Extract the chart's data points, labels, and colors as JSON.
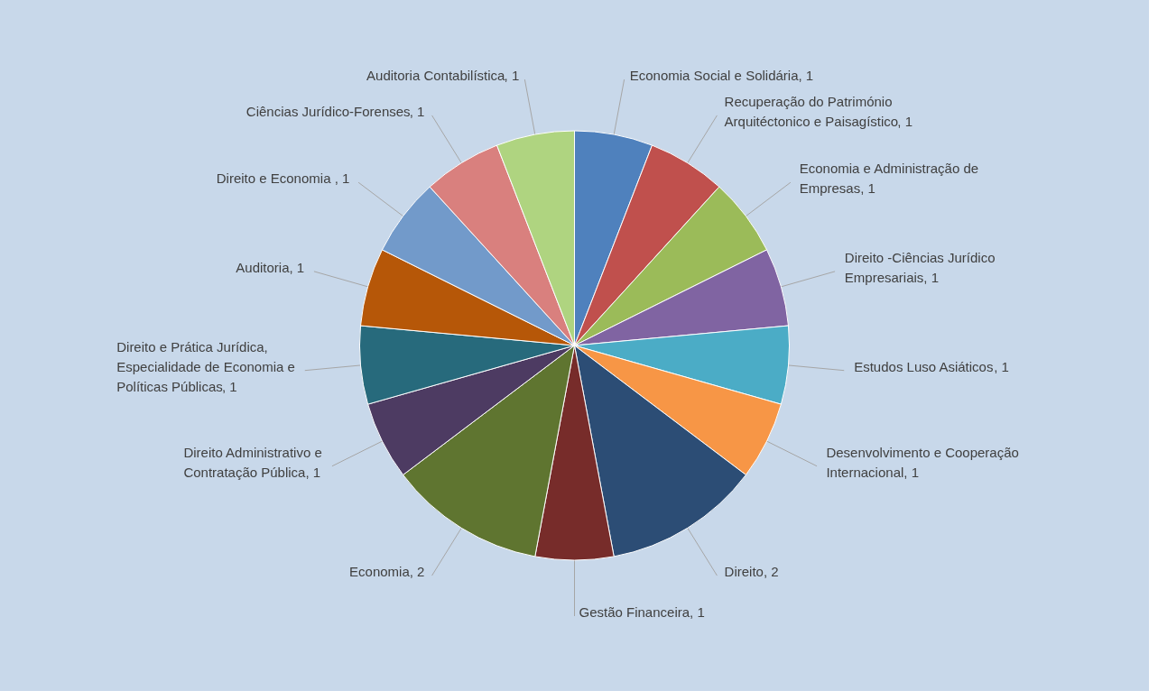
{
  "chart_data": {
    "type": "pie",
    "categories": [
      "Economia Social e Solidária",
      "Recuperação do Património Arquitéctonico e Paisagístico",
      "Economia  e Administração de Empresas",
      "Direito -Ciências Jurídico Empresariais",
      "Estudos Luso Asiáticos",
      "Desenvolvimento e Cooperação Internacional",
      "Direito",
      "Gestão Financeira",
      "Economia",
      "Direito Administrativo e Contratação Pública",
      "Direito e Prática Jurídica, Especialidade de Economia e Políticas Públicas",
      "Auditoria",
      "Direito e  Economia",
      "Ciências Jurídico-Forenses",
      "Auditoria Contabilística"
    ],
    "values": [
      1,
      1,
      1,
      1,
      1,
      1,
      2,
      1,
      2,
      1,
      1,
      1,
      1,
      1,
      1
    ],
    "colors": [
      "#4f81bd",
      "#c0504d",
      "#9bbb59",
      "#8064a2",
      "#4bacc6",
      "#f79646",
      "#2c4d75",
      "#772c2a",
      "#5f7530",
      "#4d3b62",
      "#276a7c",
      "#b65708",
      "#729aca",
      "#d9807e",
      "#afd480"
    ],
    "value_labels": [
      ", 1",
      ", 1",
      ", 1",
      ", 1",
      ", 1",
      ", 1",
      ", 2",
      ", 1",
      ", 2",
      ", 1",
      ", 1",
      ", 1",
      ", 1",
      ", 1",
      ", 1"
    ],
    "legend": false
  }
}
